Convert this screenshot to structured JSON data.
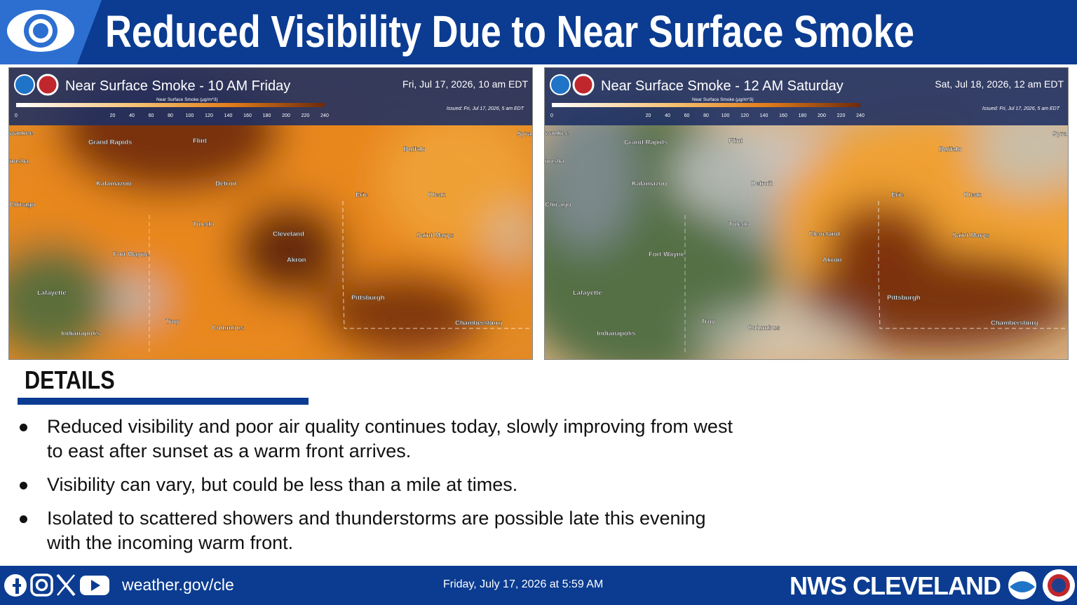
{
  "header": {
    "title": "Reduced Visibility Due to Near Surface Smoke"
  },
  "maps": [
    {
      "title": "Near Surface Smoke - 10 AM Friday",
      "date": "Fri, Jul 17, 2026, 10 am EDT",
      "colorbar_label": "Near Surface Smoke (μg/m^3)",
      "colorbar_ticks": [
        0,
        20,
        40,
        60,
        80,
        100,
        120,
        140,
        160,
        180,
        200,
        220,
        240
      ],
      "issued": "Issued: Fri, Jul 17, 2026, 5 am EDT",
      "cities": [
        "waukee",
        "Grand Rapids",
        "Flint",
        "Buffalo",
        "Syra",
        "nosha",
        "Kalamazoo",
        "Detroit",
        "Erie",
        "Olean",
        "Chicago",
        "Toledo",
        "Cleveland",
        "Saint Marys",
        "Fort Wayne",
        "Akron",
        "Lafayette",
        "Pittsburgh",
        "Troy",
        "Columbus",
        "Chambersburg",
        "Indianapolis"
      ]
    },
    {
      "title": "Near Surface Smoke - 12 AM Saturday",
      "date": "Sat, Jul 18, 2026, 12 am EDT",
      "colorbar_label": "Near Surface Smoke (μg/m^3)",
      "colorbar_ticks": [
        0,
        20,
        40,
        60,
        80,
        100,
        120,
        140,
        160,
        180,
        200,
        220,
        240
      ],
      "issued": "Issued: Fri, Jul 17, 2026, 5 am EDT",
      "cities": [
        "waukee",
        "Grand Rapids",
        "Flint",
        "Buffalo",
        "Syra",
        "nosha",
        "Kalamazoo",
        "Detroit",
        "Erie",
        "Olean",
        "Chicago",
        "Toledo",
        "Cleveland",
        "Saint Marys",
        "Fort Wayne",
        "Akron",
        "Lafayette",
        "Pittsburgh",
        "Troy",
        "Columbus",
        "Chambersburg",
        "Indianapolis"
      ]
    }
  ],
  "details": {
    "heading": "DETAILS",
    "bullets": [
      "Reduced visibility and poor air quality continues today, slowly improving from west to east after sunset as a warm front arrives.",
      "Visibility can vary, but could be less than a mile at times.",
      "Isolated to scattered showers and thunderstorms are possible late this evening with the incoming warm front."
    ]
  },
  "footer": {
    "url": "weather.gov/cle",
    "timestamp": "Friday, July 17, 2026 at 5:59 AM",
    "office": "NWS CLEVELAND"
  }
}
